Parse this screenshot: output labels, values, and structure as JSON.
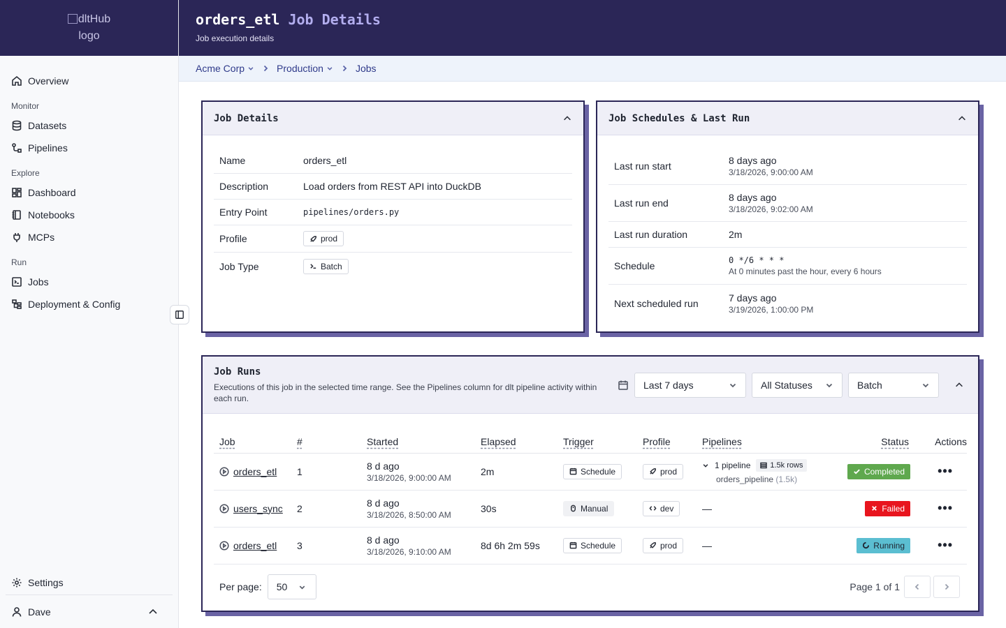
{
  "logo": {
    "alt_line1": "dltHub",
    "alt_line2": "logo"
  },
  "sidebar": {
    "overview": "Overview",
    "groups": {
      "monitor": "Monitor",
      "explore": "Explore",
      "run": "Run"
    },
    "items": {
      "datasets": "Datasets",
      "pipelines": "Pipelines",
      "dashboard": "Dashboard",
      "notebooks": "Notebooks",
      "mcps": "MCPs",
      "jobs": "Jobs",
      "deployment": "Deployment & Config"
    },
    "settings": "Settings",
    "user": "Dave"
  },
  "header": {
    "job_name": "orders_etl",
    "title_suffix": "Job Details",
    "subtitle": "Job execution details"
  },
  "breadcrumb": {
    "org": "Acme Corp",
    "env": "Production",
    "section": "Jobs"
  },
  "job_details": {
    "title": "Job Details",
    "rows": {
      "name_label": "Name",
      "name_value": "orders_etl",
      "desc_label": "Description",
      "desc_value": "Load orders from REST API into DuckDB",
      "entry_label": "Entry Point",
      "entry_value": "pipelines/orders.py",
      "profile_label": "Profile",
      "profile_value": "prod",
      "type_label": "Job Type",
      "type_value": "Batch"
    }
  },
  "schedules": {
    "title": "Job Schedules & Last Run",
    "last_start_label": "Last run start",
    "last_start_rel": "8 days ago",
    "last_start_abs": "3/18/2026, 9:00:00 AM",
    "last_end_label": "Last run end",
    "last_end_rel": "8 days ago",
    "last_end_abs": "3/18/2026, 9:02:00 AM",
    "duration_label": "Last run duration",
    "duration_value": "2m",
    "schedule_label": "Schedule",
    "schedule_cron": "0 */6 * * *",
    "schedule_desc": "At 0 minutes past the hour, every 6 hours",
    "next_label": "Next scheduled run",
    "next_rel": "7 days ago",
    "next_abs": "3/19/2026, 1:00:00 PM"
  },
  "runs": {
    "title": "Job Runs",
    "description": "Executions of this job in the selected time range. See the Pipelines column for dlt pipeline activity within each run.",
    "filters": {
      "range": "Last 7 days",
      "status": "All Statuses",
      "type": "Batch"
    },
    "columns": {
      "job": "Job",
      "num": "#",
      "started": "Started",
      "elapsed": "Elapsed",
      "trigger": "Trigger",
      "profile": "Profile",
      "pipelines": "Pipelines",
      "status": "Status",
      "actions": "Actions"
    },
    "rows": [
      {
        "job": "orders_etl",
        "num": "1",
        "started_rel": "8 d ago",
        "started_abs": "3/18/2026, 9:00:00 AM",
        "elapsed": "2m",
        "trigger": "Schedule",
        "profile": "prod",
        "pipelines_count": "1 pipeline",
        "rows_badge": "1.5k rows",
        "pipeline_name": "orders_pipeline",
        "pipeline_rows": "(1.5k)",
        "status": "Completed"
      },
      {
        "job": "users_sync",
        "num": "2",
        "started_rel": "8 d ago",
        "started_abs": "3/18/2026, 8:50:00 AM",
        "elapsed": "30s",
        "trigger": "Manual",
        "profile": "dev",
        "pipelines_dash": "—",
        "status": "Failed"
      },
      {
        "job": "orders_etl",
        "num": "3",
        "started_rel": "8 d ago",
        "started_abs": "3/18/2026, 9:10:00 AM",
        "elapsed": "8d 6h 2m 59s",
        "trigger": "Schedule",
        "profile": "prod",
        "pipelines_dash": "—",
        "status": "Running"
      }
    ],
    "actions_glyph": "•••",
    "pager": {
      "per_page_label": "Per page:",
      "per_page_value": "50",
      "page_text": "Page 1 of 1"
    }
  },
  "colors": {
    "brand_dark": "#2b2657",
    "accent_lavender": "#b3aeef",
    "shadow": "#6a63a4",
    "completed": "#5fa84e",
    "failed": "#e8151e",
    "running": "#5bbed1"
  }
}
